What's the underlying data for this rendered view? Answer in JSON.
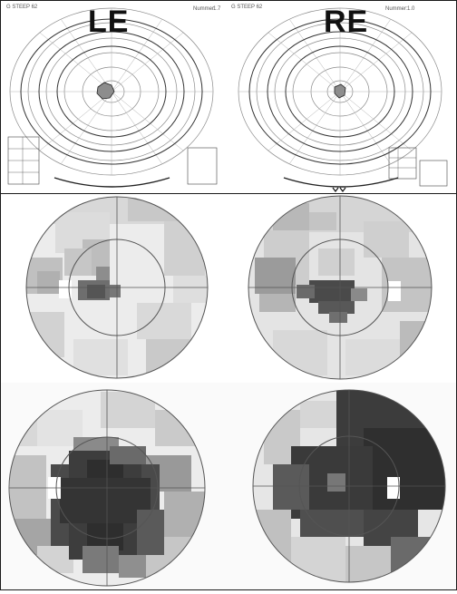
{
  "labels": {
    "left_eye": "LE",
    "right_eye": "RE"
  },
  "perimetry": {
    "left": {
      "header": "G STEEP 62",
      "field_name": "Nummer:",
      "value": "1.7"
    },
    "right": {
      "header": "G STEEP 62",
      "field_name": "Nummer:",
      "value": "1.0"
    }
  },
  "colors": {
    "background": "#ffffff",
    "light_gray": "#d6d6d6",
    "mid_gray": "#a8a8a8",
    "dark_gray": "#4a4a4a",
    "very_dark": "#2e2e2e"
  },
  "icons": [
    "crosshair-icon",
    "fovea-marker-icon"
  ]
}
